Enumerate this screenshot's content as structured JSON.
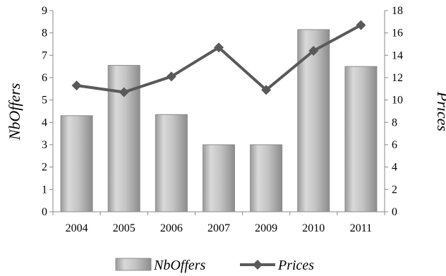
{
  "chart_data": {
    "type": "bar",
    "categories": [
      "2004",
      "2005",
      "2006",
      "2007",
      "2009",
      "2010",
      "2011"
    ],
    "series": [
      {
        "name": "NbOffers",
        "type": "bar",
        "axis": "left",
        "values": [
          4.3,
          6.55,
          4.35,
          3.0,
          3.0,
          8.15,
          6.5
        ],
        "color": "#bfbfbf"
      },
      {
        "name": "Prices",
        "type": "line",
        "axis": "right",
        "values": [
          11.3,
          10.7,
          12.1,
          14.7,
          10.9,
          14.4,
          16.7
        ],
        "color": "#595959"
      }
    ],
    "ylabel": "NbOffers",
    "y2label": "Prices",
    "ylim": [
      0,
      9
    ],
    "y2lim": [
      0,
      18
    ],
    "yticks": [
      "0",
      "1",
      "2",
      "3",
      "4",
      "5",
      "6",
      "7",
      "8",
      "9"
    ],
    "y2ticks": [
      "0",
      "2",
      "4",
      "6",
      "8",
      "10",
      "12",
      "14",
      "16",
      "18"
    ],
    "grid": false,
    "legend_position": "bottom"
  }
}
